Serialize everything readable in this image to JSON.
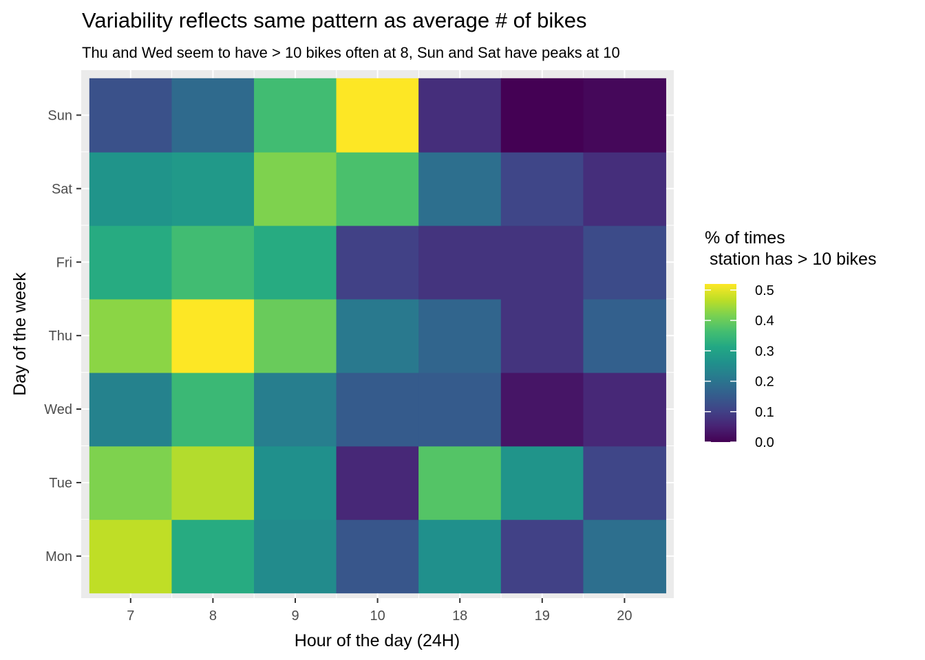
{
  "chart_data": {
    "type": "heatmap",
    "title": "Variability reflects same pattern as average # of bikes",
    "subtitle": "Thu and Wed seem to have > 10 bikes often at 8, Sun and Sat have peaks at 10",
    "xlabel": "Hour of the day (24H)",
    "ylabel": "Day of the week",
    "x_categories": [
      "7",
      "8",
      "9",
      "10",
      "18",
      "19",
      "20"
    ],
    "y_categories": [
      "Mon",
      "Tue",
      "Wed",
      "Thu",
      "Fri",
      "Sat",
      "Sun"
    ],
    "values": [
      [
        0.47,
        0.32,
        0.25,
        0.14,
        0.26,
        0.1,
        0.19
      ],
      [
        0.42,
        0.46,
        0.26,
        0.06,
        0.38,
        0.27,
        0.11
      ],
      [
        0.23,
        0.35,
        0.22,
        0.15,
        0.15,
        0.03,
        0.06
      ],
      [
        0.43,
        0.52,
        0.4,
        0.21,
        0.17,
        0.08,
        0.16
      ],
      [
        0.32,
        0.36,
        0.32,
        0.1,
        0.08,
        0.08,
        0.12
      ],
      [
        0.27,
        0.28,
        0.42,
        0.37,
        0.19,
        0.11,
        0.07
      ],
      [
        0.13,
        0.18,
        0.36,
        0.52,
        0.07,
        0.0,
        0.01
      ]
    ],
    "legend": {
      "title_lines": [
        "% of times",
        " station has > 10 bikes"
      ],
      "ticks": [
        "0.0",
        "0.1",
        "0.2",
        "0.3",
        "0.4",
        "0.5"
      ],
      "tick_values": [
        0.0,
        0.1,
        0.2,
        0.3,
        0.4,
        0.5
      ],
      "range": [
        0.0,
        0.52
      ],
      "placement": "right"
    },
    "colorscale": "viridis",
    "panel_background": "#ebebeb",
    "grid": true
  }
}
